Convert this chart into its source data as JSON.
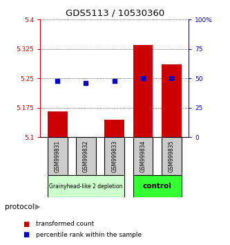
{
  "title": "GDS5113 / 10530360",
  "samples": [
    "GSM999831",
    "GSM999832",
    "GSM999833",
    "GSM999834",
    "GSM999835"
  ],
  "red_values": [
    5.165,
    5.101,
    5.145,
    5.335,
    5.285
  ],
  "blue_values": [
    48,
    46,
    48,
    50,
    50
  ],
  "ylim_left": [
    5.1,
    5.4
  ],
  "ylim_right": [
    0,
    100
  ],
  "yticks_left": [
    5.1,
    5.175,
    5.25,
    5.325,
    5.4
  ],
  "yticks_right": [
    0,
    25,
    50,
    75,
    100
  ],
  "ytick_labels_left": [
    "5.1",
    "5.175",
    "5.25",
    "5.325",
    "5.4"
  ],
  "ytick_labels_right": [
    "0",
    "25",
    "50",
    "75",
    "100%"
  ],
  "left_color": "#cc0000",
  "right_color": "#0000cc",
  "bar_base": 5.1,
  "blue_dot_size": 18,
  "group1_label": "Grainyhead-like 2 depletion",
  "group2_label": "control",
  "group1_color": "#ccffcc",
  "group2_color": "#33ff33",
  "protocol_label": "protocol",
  "group1_indices": [
    0,
    1,
    2
  ],
  "group2_indices": [
    3,
    4
  ],
  "legend_red_label": "transformed count",
  "legend_blue_label": "percentile rank within the sample",
  "bar_width": 0.7,
  "bg_color": "#ffffff",
  "tick_box_color": "#cccccc"
}
